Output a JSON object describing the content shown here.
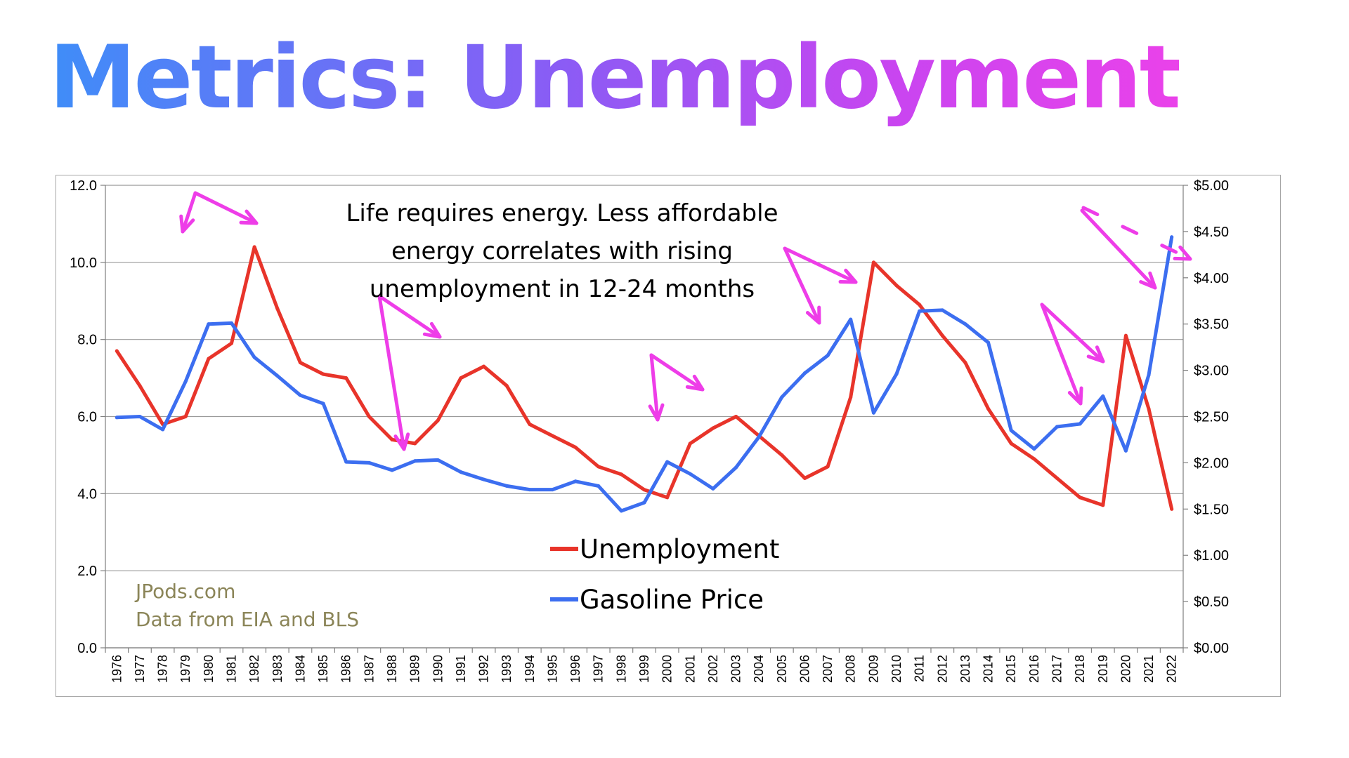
{
  "page": {
    "title": "Metrics: Unemployment"
  },
  "colors": {
    "unemployment": "#e8342a",
    "gasoline": "#3c6ef0",
    "arrow": "#ee3de8",
    "credit": "#8b8558",
    "grid": "#9a9a9a"
  },
  "chart_data": {
    "type": "line",
    "title": "",
    "xlabel": "",
    "ylabel": "",
    "y2label": "",
    "x": [
      "1976",
      "1977",
      "1978",
      "1979",
      "1980",
      "1981",
      "1982",
      "1983",
      "1984",
      "1985",
      "1986",
      "1987",
      "1988",
      "1989",
      "1990",
      "1991",
      "1992",
      "1993",
      "1994",
      "1995",
      "1996",
      "1997",
      "1998",
      "1999",
      "2000",
      "2001",
      "2002",
      "2003",
      "2004",
      "2005",
      "2006",
      "2007",
      "2008",
      "2009",
      "2010",
      "2011",
      "2012",
      "2013",
      "2014",
      "2015",
      "2016",
      "2017",
      "2018",
      "2019",
      "2020",
      "2021",
      "2022"
    ],
    "ylim": [
      0,
      12
    ],
    "y2lim": [
      0,
      5
    ],
    "y_ticks": [
      "0.0",
      "2.0",
      "4.0",
      "6.0",
      "8.0",
      "10.0",
      "12.0"
    ],
    "y2_ticks": [
      "$0.00",
      "$0.50",
      "$1.00",
      "$1.50",
      "$2.00",
      "$2.50",
      "$3.00",
      "$3.50",
      "$4.00",
      "$4.50",
      "$5.00"
    ],
    "grid": true,
    "legend_position": "center-bottom",
    "series": [
      {
        "name": "Unemployment",
        "axis": "left",
        "color": "#e8342a",
        "values": [
          7.7,
          6.8,
          5.8,
          6.0,
          7.5,
          7.9,
          10.4,
          8.8,
          7.4,
          7.1,
          7.0,
          6.0,
          5.4,
          5.3,
          5.9,
          7.0,
          7.3,
          6.8,
          5.8,
          5.5,
          5.2,
          4.7,
          4.5,
          4.1,
          3.9,
          5.3,
          5.7,
          6.0,
          5.5,
          5.0,
          4.4,
          4.7,
          6.5,
          10.0,
          9.4,
          8.9,
          8.1,
          7.4,
          6.2,
          5.3,
          4.9,
          4.4,
          3.9,
          3.7,
          8.1,
          6.2,
          3.6
        ]
      },
      {
        "name": "Gasoline Price",
        "axis": "right",
        "color": "#3c6ef0",
        "values": [
          2.49,
          2.5,
          2.36,
          2.88,
          3.5,
          3.51,
          3.14,
          2.94,
          2.73,
          2.64,
          2.01,
          2.0,
          1.92,
          2.02,
          2.03,
          1.9,
          1.82,
          1.75,
          1.71,
          1.71,
          1.8,
          1.75,
          1.48,
          1.57,
          2.01,
          1.88,
          1.72,
          1.95,
          2.28,
          2.71,
          2.97,
          3.16,
          3.55,
          2.54,
          2.96,
          3.64,
          3.65,
          3.5,
          3.3,
          2.35,
          2.15,
          2.39,
          2.42,
          2.72,
          2.13,
          2.95,
          4.44
        ]
      }
    ],
    "annotations": [
      "Life requires energy. Less affordable",
      "energy correlates with rising",
      "unemployment in 12-24 months"
    ]
  },
  "credit": {
    "line1": "JPods.com",
    "line2": "Data from EIA and BLS"
  }
}
